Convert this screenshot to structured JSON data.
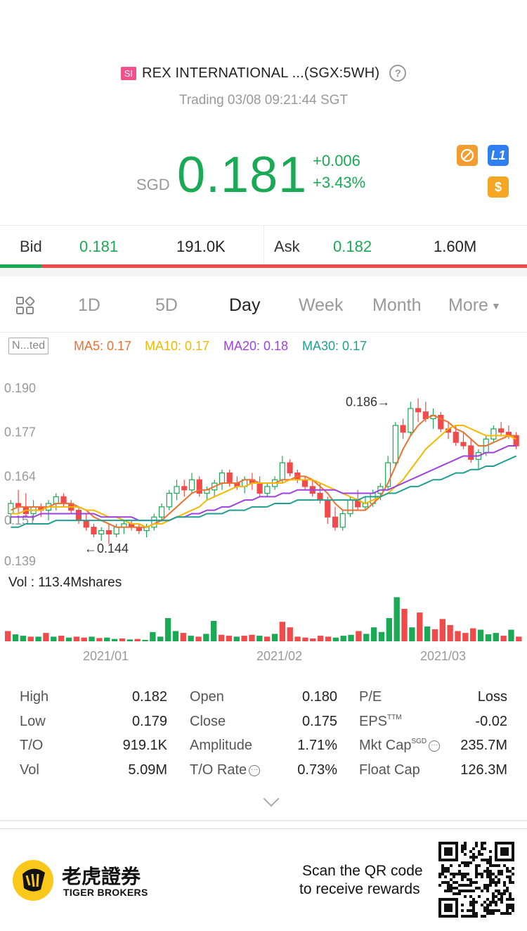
{
  "header": {
    "badge": "SI",
    "title": "REX INTERNATIONAL ...(SGX:5WH)",
    "status": "Trading 03/08 09:21:44 SGT",
    "currency": "SGD",
    "price": "0.181",
    "change": "+0.006",
    "change_pct": "+3.43%",
    "tag_l1": "L1",
    "tag_s": "$",
    "accent_up": "#1aaa55",
    "accent_down": "#f04a4a"
  },
  "bidask": {
    "bid_label": "Bid",
    "bid_price": "0.181",
    "bid_vol": "191.0K",
    "ask_label": "Ask",
    "ask_price": "0.182",
    "ask_vol": "1.60M",
    "bid_ratio": 0.105
  },
  "tabs": [
    "1D",
    "5D",
    "Day",
    "Week",
    "Month",
    "More"
  ],
  "active_tab": "Day",
  "indicators": {
    "selector": "N...ted",
    "ma5": "MA5: 0.17",
    "ma10": "MA10: 0.17",
    "ma20": "MA20: 0.18",
    "ma30": "MA30: 0.17"
  },
  "chart_data": {
    "type": "candlestick",
    "y_ticks": [
      "0.190",
      "0.177",
      "0.164",
      "0.151",
      "0.139"
    ],
    "ylim": [
      0.139,
      0.19
    ],
    "annotations": [
      {
        "label": "0.186→",
        "value": 0.186
      },
      {
        "label": "←0.144",
        "value": 0.144
      }
    ],
    "x_labels": [
      "2021/01",
      "2021/02",
      "2021/03"
    ],
    "ohlc": [
      [
        0.153,
        0.157,
        0.15,
        0.156
      ],
      [
        0.156,
        0.16,
        0.153,
        0.155
      ],
      [
        0.155,
        0.159,
        0.152,
        0.153
      ],
      [
        0.153,
        0.157,
        0.151,
        0.155
      ],
      [
        0.155,
        0.156,
        0.152,
        0.154
      ],
      [
        0.154,
        0.157,
        0.151,
        0.156
      ],
      [
        0.156,
        0.159,
        0.154,
        0.158
      ],
      [
        0.158,
        0.159,
        0.155,
        0.156
      ],
      [
        0.156,
        0.157,
        0.153,
        0.154
      ],
      [
        0.154,
        0.155,
        0.15,
        0.151
      ],
      [
        0.151,
        0.153,
        0.148,
        0.149
      ],
      [
        0.149,
        0.15,
        0.146,
        0.147
      ],
      [
        0.147,
        0.149,
        0.145,
        0.148
      ],
      [
        0.148,
        0.15,
        0.144,
        0.147
      ],
      [
        0.147,
        0.15,
        0.146,
        0.149
      ],
      [
        0.149,
        0.151,
        0.147,
        0.15
      ],
      [
        0.15,
        0.151,
        0.148,
        0.149
      ],
      [
        0.149,
        0.15,
        0.147,
        0.148
      ],
      [
        0.148,
        0.15,
        0.146,
        0.149
      ],
      [
        0.149,
        0.153,
        0.148,
        0.152
      ],
      [
        0.152,
        0.156,
        0.151,
        0.155
      ],
      [
        0.155,
        0.16,
        0.154,
        0.159
      ],
      [
        0.159,
        0.163,
        0.157,
        0.161
      ],
      [
        0.161,
        0.163,
        0.158,
        0.16
      ],
      [
        0.16,
        0.165,
        0.159,
        0.163
      ],
      [
        0.163,
        0.164,
        0.158,
        0.159
      ],
      [
        0.159,
        0.161,
        0.157,
        0.16
      ],
      [
        0.16,
        0.163,
        0.158,
        0.162
      ],
      [
        0.162,
        0.166,
        0.16,
        0.165
      ],
      [
        0.165,
        0.166,
        0.161,
        0.162
      ],
      [
        0.162,
        0.164,
        0.16,
        0.161
      ],
      [
        0.161,
        0.164,
        0.159,
        0.163
      ],
      [
        0.163,
        0.165,
        0.16,
        0.162
      ],
      [
        0.162,
        0.164,
        0.158,
        0.159
      ],
      [
        0.159,
        0.162,
        0.158,
        0.161
      ],
      [
        0.161,
        0.164,
        0.16,
        0.163
      ],
      [
        0.163,
        0.17,
        0.162,
        0.168
      ],
      [
        0.168,
        0.169,
        0.164,
        0.165
      ],
      [
        0.165,
        0.166,
        0.162,
        0.163
      ],
      [
        0.163,
        0.164,
        0.16,
        0.161
      ],
      [
        0.161,
        0.163,
        0.158,
        0.159
      ],
      [
        0.159,
        0.162,
        0.156,
        0.157
      ],
      [
        0.157,
        0.158,
        0.15,
        0.152
      ],
      [
        0.152,
        0.155,
        0.148,
        0.149
      ],
      [
        0.149,
        0.154,
        0.148,
        0.153
      ],
      [
        0.153,
        0.158,
        0.152,
        0.157
      ],
      [
        0.157,
        0.16,
        0.154,
        0.155
      ],
      [
        0.155,
        0.158,
        0.154,
        0.156
      ],
      [
        0.156,
        0.16,
        0.155,
        0.159
      ],
      [
        0.159,
        0.162,
        0.157,
        0.161
      ],
      [
        0.161,
        0.17,
        0.16,
        0.168
      ],
      [
        0.168,
        0.18,
        0.167,
        0.179
      ],
      [
        0.179,
        0.181,
        0.175,
        0.177
      ],
      [
        0.177,
        0.186,
        0.176,
        0.184
      ],
      [
        0.184,
        0.187,
        0.18,
        0.183
      ],
      [
        0.183,
        0.186,
        0.18,
        0.181
      ],
      [
        0.181,
        0.184,
        0.178,
        0.182
      ],
      [
        0.182,
        0.183,
        0.177,
        0.178
      ],
      [
        0.178,
        0.18,
        0.175,
        0.177
      ],
      [
        0.177,
        0.179,
        0.173,
        0.174
      ],
      [
        0.174,
        0.177,
        0.172,
        0.173
      ],
      [
        0.173,
        0.175,
        0.168,
        0.169
      ],
      [
        0.169,
        0.172,
        0.166,
        0.171
      ],
      [
        0.171,
        0.176,
        0.17,
        0.175
      ],
      [
        0.175,
        0.179,
        0.174,
        0.178
      ],
      [
        0.178,
        0.18,
        0.176,
        0.177
      ],
      [
        0.177,
        0.179,
        0.175,
        0.176
      ],
      [
        0.176,
        0.177,
        0.172,
        0.173
      ]
    ],
    "ma5": [
      0.154,
      0.155,
      0.155,
      0.155,
      0.155,
      0.155,
      0.156,
      0.156,
      0.156,
      0.155,
      0.154,
      0.152,
      0.151,
      0.15,
      0.149,
      0.149,
      0.149,
      0.149,
      0.149,
      0.15,
      0.151,
      0.153,
      0.155,
      0.157,
      0.159,
      0.16,
      0.16,
      0.161,
      0.162,
      0.162,
      0.162,
      0.163,
      0.163,
      0.162,
      0.162,
      0.162,
      0.163,
      0.163,
      0.164,
      0.164,
      0.163,
      0.161,
      0.159,
      0.156,
      0.154,
      0.154,
      0.154,
      0.154,
      0.156,
      0.158,
      0.162,
      0.167,
      0.172,
      0.176,
      0.179,
      0.181,
      0.182,
      0.181,
      0.18,
      0.178,
      0.177,
      0.175,
      0.173,
      0.173,
      0.174,
      0.175,
      0.176,
      0.176
    ],
    "ma10": [
      0.153,
      0.153,
      0.154,
      0.154,
      0.154,
      0.155,
      0.155,
      0.155,
      0.155,
      0.155,
      0.154,
      0.154,
      0.153,
      0.152,
      0.152,
      0.151,
      0.15,
      0.15,
      0.149,
      0.15,
      0.15,
      0.151,
      0.152,
      0.153,
      0.154,
      0.155,
      0.157,
      0.158,
      0.159,
      0.16,
      0.161,
      0.161,
      0.162,
      0.162,
      0.162,
      0.162,
      0.162,
      0.163,
      0.163,
      0.163,
      0.163,
      0.162,
      0.161,
      0.16,
      0.159,
      0.158,
      0.157,
      0.156,
      0.157,
      0.158,
      0.159,
      0.161,
      0.163,
      0.166,
      0.169,
      0.172,
      0.174,
      0.176,
      0.178,
      0.179,
      0.179,
      0.178,
      0.177,
      0.176,
      0.176,
      0.176,
      0.176,
      0.175
    ],
    "ma20": [
      0.152,
      0.152,
      0.152,
      0.152,
      0.153,
      0.153,
      0.153,
      0.153,
      0.153,
      0.153,
      0.153,
      0.153,
      0.152,
      0.152,
      0.152,
      0.152,
      0.152,
      0.151,
      0.151,
      0.151,
      0.151,
      0.151,
      0.152,
      0.152,
      0.153,
      0.153,
      0.154,
      0.154,
      0.155,
      0.155,
      0.156,
      0.157,
      0.157,
      0.158,
      0.158,
      0.158,
      0.159,
      0.159,
      0.16,
      0.16,
      0.16,
      0.16,
      0.16,
      0.16,
      0.159,
      0.159,
      0.159,
      0.159,
      0.159,
      0.16,
      0.16,
      0.161,
      0.162,
      0.163,
      0.164,
      0.165,
      0.166,
      0.167,
      0.168,
      0.169,
      0.17,
      0.17,
      0.17,
      0.171,
      0.171,
      0.172,
      0.173,
      0.173
    ],
    "ma30": [
      0.149,
      0.149,
      0.15,
      0.15,
      0.15,
      0.15,
      0.151,
      0.151,
      0.151,
      0.151,
      0.151,
      0.151,
      0.151,
      0.151,
      0.151,
      0.151,
      0.151,
      0.151,
      0.151,
      0.151,
      0.151,
      0.151,
      0.152,
      0.152,
      0.152,
      0.152,
      0.153,
      0.153,
      0.153,
      0.154,
      0.154,
      0.154,
      0.155,
      0.155,
      0.155,
      0.156,
      0.156,
      0.156,
      0.157,
      0.157,
      0.157,
      0.157,
      0.157,
      0.157,
      0.157,
      0.157,
      0.157,
      0.158,
      0.158,
      0.158,
      0.159,
      0.159,
      0.16,
      0.161,
      0.161,
      0.162,
      0.163,
      0.163,
      0.164,
      0.165,
      0.165,
      0.166,
      0.166,
      0.167,
      0.167,
      0.168,
      0.169,
      0.17
    ],
    "volume_label": "Vol",
    "volume_value": ": 113.4Mshares",
    "volume": [
      0.22,
      0.15,
      0.12,
      0.1,
      0.1,
      0.18,
      0.1,
      0.12,
      0.08,
      0.1,
      0.08,
      0.1,
      0.07,
      0.08,
      0.05,
      0.06,
      0.04,
      0.05,
      0.03,
      0.2,
      0.1,
      0.5,
      0.22,
      0.18,
      0.12,
      0.1,
      0.16,
      0.44,
      0.14,
      0.12,
      0.1,
      0.12,
      0.14,
      0.12,
      0.1,
      0.16,
      0.42,
      0.3,
      0.1,
      0.08,
      0.06,
      0.12,
      0.1,
      0.08,
      0.12,
      0.14,
      0.22,
      0.16,
      0.3,
      0.2,
      0.5,
      0.95,
      0.7,
      0.3,
      0.62,
      0.32,
      0.26,
      0.48,
      0.35,
      0.22,
      0.18,
      0.28,
      0.25,
      0.15,
      0.18,
      0.12,
      0.25,
      0.1
    ],
    "volume_up": [
      false,
      true,
      true,
      false,
      true,
      false,
      true,
      false,
      true,
      false,
      false,
      true,
      false,
      true,
      true,
      false,
      true,
      false,
      true,
      true,
      true,
      true,
      true,
      false,
      true,
      false,
      true,
      true,
      false,
      false,
      true,
      false,
      false,
      true,
      false,
      true,
      false,
      false,
      false,
      false,
      false,
      false,
      false,
      true,
      true,
      true,
      false,
      true,
      true,
      true,
      true,
      true,
      false,
      true,
      false,
      true,
      false,
      false,
      false,
      false,
      false,
      false,
      true,
      true,
      true,
      false,
      true,
      false
    ]
  },
  "stats": {
    "col1": [
      {
        "label": "High",
        "value": "0.182"
      },
      {
        "label": "Low",
        "value": "0.179"
      },
      {
        "label": "T/O",
        "value": "919.1K"
      },
      {
        "label": "Vol",
        "value": "5.09M"
      }
    ],
    "col2": [
      {
        "label": "Open",
        "value": "0.180"
      },
      {
        "label": "Close",
        "value": "0.175"
      },
      {
        "label": "Amplitude",
        "value": "1.71%"
      },
      {
        "label": "T/O Rate",
        "value": "0.73%"
      }
    ],
    "col3": [
      {
        "label": "P/E",
        "value": "Loss"
      },
      {
        "label": "EPS",
        "sup": "TTM",
        "value": "-0.02"
      },
      {
        "label": "Mkt Cap",
        "sup": "SGD",
        "value": "235.7M"
      },
      {
        "label": "Float Cap",
        "value": "126.3M"
      }
    ]
  },
  "footer": {
    "brand_cn": "老虎證券",
    "brand_en": "TIGER BROKERS",
    "scan_line1": "Scan the QR code",
    "scan_line2": "to receive rewards"
  }
}
